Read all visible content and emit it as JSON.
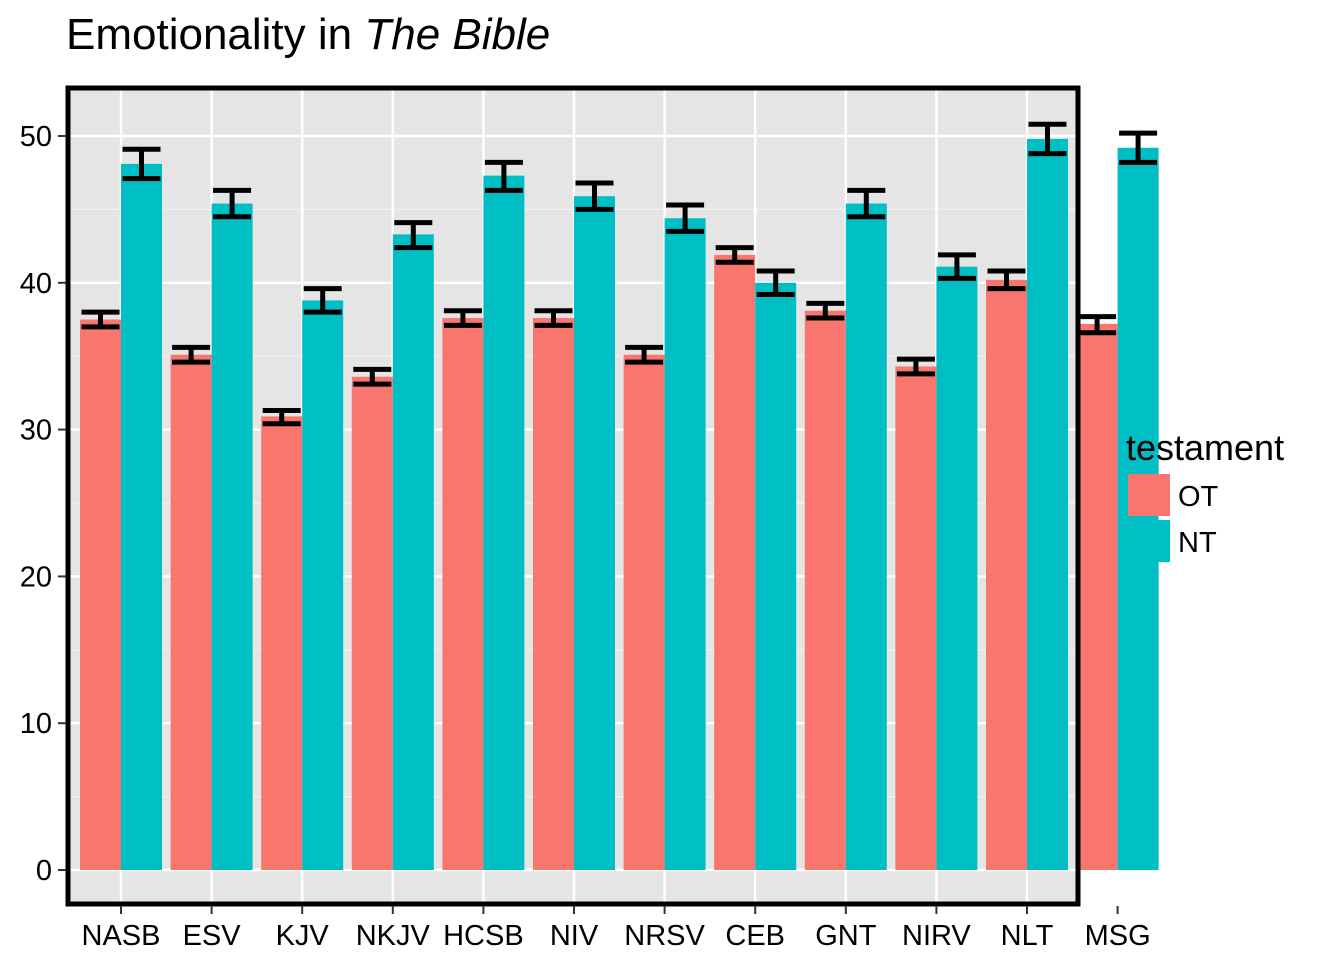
{
  "title": {
    "prefix": "Emotionality in ",
    "emphasis": "The Bible"
  },
  "chart_data": {
    "type": "bar",
    "title": "Emotionality in The Bible",
    "xlabel": "",
    "ylabel": "",
    "categories": [
      "NASB",
      "ESV",
      "KJV",
      "NKJV",
      "HCSB",
      "NIV",
      "NRSV",
      "CEB",
      "GNT",
      "NIRV",
      "NLT",
      "MSG"
    ],
    "ylim": [
      0,
      53
    ],
    "yticks": [
      0,
      10,
      20,
      30,
      40,
      50
    ],
    "grid": true,
    "legend": {
      "title": "testament",
      "position": "right"
    },
    "series": [
      {
        "name": "OT",
        "color": "#F8766D",
        "values": [
          37.5,
          35.1,
          30.9,
          33.6,
          37.6,
          37.6,
          35.1,
          41.9,
          38.1,
          34.3,
          40.2,
          37.2
        ],
        "error_low": [
          37.0,
          34.6,
          30.4,
          33.1,
          37.1,
          37.1,
          34.6,
          41.4,
          37.6,
          33.8,
          39.6,
          36.6
        ],
        "error_high": [
          38.0,
          35.6,
          31.3,
          34.1,
          38.1,
          38.1,
          35.6,
          42.4,
          38.6,
          34.8,
          40.8,
          37.7
        ]
      },
      {
        "name": "NT",
        "color": "#00BFC4",
        "values": [
          48.1,
          45.4,
          38.8,
          43.3,
          47.3,
          45.9,
          44.4,
          40.0,
          45.4,
          41.1,
          49.8,
          49.2
        ],
        "error_low": [
          47.1,
          44.5,
          38.0,
          42.4,
          46.3,
          45.0,
          43.5,
          39.2,
          44.5,
          40.3,
          48.8,
          48.2
        ],
        "error_high": [
          49.1,
          46.3,
          39.6,
          44.1,
          48.2,
          46.8,
          45.3,
          40.8,
          46.3,
          41.9,
          50.8,
          50.2
        ]
      }
    ]
  }
}
